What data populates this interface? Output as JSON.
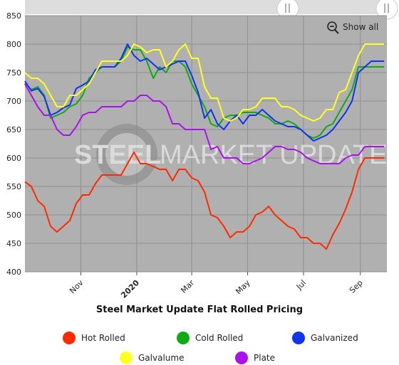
{
  "show_all": {
    "label": "Show all",
    "icon": "magnifier-zoom-out-icon"
  },
  "watermark": {
    "text_bold": "STEEL",
    "text_light": "MARKET UPDATE"
  },
  "legend": [
    {
      "key": "hot",
      "label": "Hot Rolled",
      "color": "#ff2a00"
    },
    {
      "key": "cold",
      "label": "Cold Rolled",
      "color": "#11aa11"
    },
    {
      "key": "galv",
      "label": "Galvanized",
      "color": "#1133ee"
    },
    {
      "key": "galva",
      "label": "Galvalume",
      "color": "#ffff22"
    },
    {
      "key": "plate",
      "label": "Plate",
      "color": "#aa11ee"
    }
  ],
  "chart_data": {
    "type": "line",
    "title": "Steel Market Update Flat Rolled Pricing",
    "xlabel": "",
    "ylabel": "",
    "ylim": [
      400,
      850
    ],
    "yticks": [
      400,
      450,
      500,
      550,
      600,
      650,
      700,
      750,
      800,
      850
    ],
    "xlim": [
      "2019-09-01",
      "2020-09-30"
    ],
    "xticks": [
      {
        "date": "2019-11-01",
        "label": "Nov",
        "bold": false
      },
      {
        "date": "2020-01-01",
        "label": "2020",
        "bold": true
      },
      {
        "date": "2020-03-01",
        "label": "Mar",
        "bold": false
      },
      {
        "date": "2020-05-01",
        "label": "May",
        "bold": false
      },
      {
        "date": "2020-07-01",
        "label": "Jul",
        "bold": false
      },
      {
        "date": "2020-09-01",
        "label": "Sep",
        "bold": false
      }
    ],
    "grid": true,
    "legend_position": "bottom",
    "x": [
      "2019-09-01",
      "2019-09-08",
      "2019-09-15",
      "2019-09-22",
      "2019-09-29",
      "2019-10-06",
      "2019-10-13",
      "2019-10-20",
      "2019-10-27",
      "2019-11-03",
      "2019-11-10",
      "2019-11-17",
      "2019-11-24",
      "2019-12-01",
      "2019-12-08",
      "2019-12-15",
      "2019-12-22",
      "2019-12-29",
      "2020-01-05",
      "2020-01-12",
      "2020-01-19",
      "2020-01-26",
      "2020-02-02",
      "2020-02-09",
      "2020-02-16",
      "2020-02-23",
      "2020-03-01",
      "2020-03-08",
      "2020-03-15",
      "2020-03-22",
      "2020-03-29",
      "2020-04-05",
      "2020-04-12",
      "2020-04-19",
      "2020-04-26",
      "2020-05-03",
      "2020-05-10",
      "2020-05-17",
      "2020-05-24",
      "2020-05-31",
      "2020-06-07",
      "2020-06-14",
      "2020-06-21",
      "2020-06-28",
      "2020-07-05",
      "2020-07-12",
      "2020-07-19",
      "2020-07-26",
      "2020-08-02",
      "2020-08-09",
      "2020-08-16",
      "2020-08-23",
      "2020-08-30",
      "2020-09-06",
      "2020-09-13",
      "2020-09-20",
      "2020-09-27"
    ],
    "series": [
      {
        "name": "Hot Rolled",
        "color": "#ff2a00",
        "values": [
          558,
          550,
          525,
          515,
          480,
          470,
          480,
          490,
          520,
          535,
          535,
          555,
          570,
          570,
          570,
          570,
          590,
          610,
          590,
          590,
          585,
          580,
          580,
          560,
          580,
          580,
          565,
          560,
          540,
          500,
          495,
          480,
          460,
          470,
          470,
          480,
          500,
          505,
          515,
          500,
          490,
          480,
          475,
          460,
          460,
          450,
          450,
          440,
          465,
          485,
          510,
          540,
          580,
          600,
          600,
          600,
          600
        ]
      },
      {
        "name": "Cold Rolled",
        "color": "#11aa11",
        "values": [
          732,
          720,
          725,
          710,
          670,
          675,
          680,
          690,
          695,
          710,
          740,
          750,
          760,
          760,
          760,
          770,
          795,
          790,
          790,
          770,
          740,
          760,
          750,
          770,
          770,
          760,
          730,
          710,
          690,
          660,
          655,
          670,
          675,
          675,
          680,
          680,
          680,
          675,
          670,
          660,
          660,
          665,
          660,
          650,
          640,
          635,
          640,
          655,
          660,
          680,
          700,
          720,
          760,
          760,
          760,
          760,
          760
        ]
      },
      {
        "name": "Galvanized",
        "color": "#1133ee",
        "values": [
          735,
          718,
          722,
          708,
          675,
          680,
          688,
          693,
          722,
          728,
          735,
          755,
          760,
          760,
          760,
          775,
          800,
          780,
          770,
          775,
          765,
          755,
          760,
          765,
          770,
          770,
          745,
          715,
          670,
          685,
          660,
          650,
          665,
          675,
          660,
          675,
          675,
          685,
          675,
          665,
          660,
          655,
          655,
          650,
          640,
          630,
          635,
          640,
          650,
          665,
          680,
          700,
          750,
          760,
          770,
          770,
          770
        ]
      },
      {
        "name": "Galvalume",
        "color": "#ffff22",
        "values": [
          750,
          740,
          740,
          730,
          710,
          690,
          690,
          710,
          710,
          720,
          730,
          750,
          770,
          770,
          770,
          770,
          780,
          800,
          795,
          785,
          790,
          790,
          760,
          770,
          790,
          800,
          775,
          775,
          725,
          705,
          705,
          670,
          665,
          670,
          685,
          685,
          690,
          705,
          705,
          705,
          690,
          690,
          685,
          675,
          670,
          665,
          670,
          685,
          685,
          715,
          720,
          750,
          780,
          800,
          800,
          800,
          800
        ]
      },
      {
        "name": "Plate",
        "color": "#aa11ee",
        "values": [
          730,
          710,
          690,
          675,
          675,
          650,
          640,
          640,
          655,
          675,
          680,
          680,
          690,
          690,
          690,
          690,
          700,
          700,
          710,
          710,
          700,
          700,
          690,
          660,
          660,
          650,
          650,
          650,
          650,
          615,
          620,
          600,
          600,
          600,
          590,
          590,
          595,
          600,
          610,
          620,
          620,
          615,
          615,
          610,
          600,
          595,
          590,
          590,
          590,
          590,
          600,
          605,
          605,
          620,
          620,
          620,
          620
        ]
      }
    ]
  }
}
